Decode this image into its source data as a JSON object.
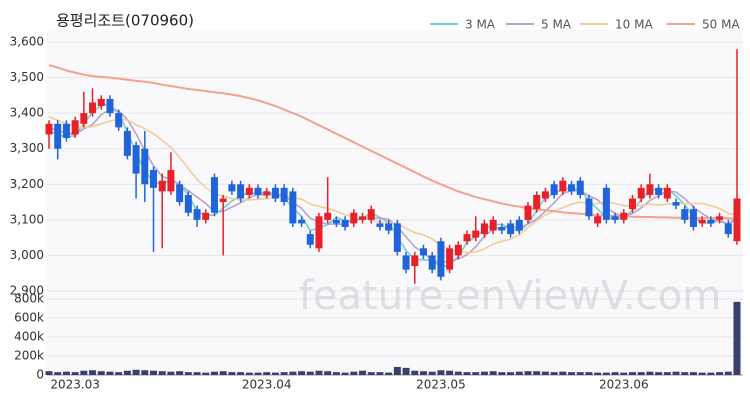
{
  "chart_data": {
    "type": "candlestick",
    "title": "용평리조트(070960)",
    "watermark": "feature.enViewV.com",
    "categories": [
      null,
      null,
      null,
      "2023.03",
      null,
      null,
      null,
      null,
      null,
      null,
      null,
      null,
      null,
      null,
      null,
      null,
      null,
      null,
      null,
      null,
      null,
      null,
      null,
      null,
      null,
      "2023.04",
      null,
      null,
      null,
      null,
      null,
      null,
      null,
      null,
      null,
      null,
      null,
      null,
      null,
      null,
      null,
      null,
      null,
      null,
      null,
      "2023.05",
      null,
      null,
      null,
      null,
      null,
      null,
      null,
      null,
      null,
      null,
      null,
      null,
      null,
      null,
      null,
      null,
      null,
      null,
      null,
      null,
      "2023.06",
      null,
      null,
      null,
      null,
      null,
      null,
      null,
      null,
      null,
      null,
      null,
      null,
      null
    ],
    "open": [
      3340,
      3370,
      3370,
      3340,
      3370,
      3400,
      3420,
      3440,
      3400,
      3350,
      3310,
      3300,
      3240,
      3180,
      3180,
      3200,
      3170,
      3130,
      3100,
      3220,
      3150,
      3200,
      3200,
      3170,
      3190,
      3170,
      3190,
      3190,
      3180,
      3100,
      3060,
      3020,
      3100,
      3100,
      3100,
      3090,
      3100,
      3100,
      3090,
      3090,
      3090,
      3000,
      2970,
      3020,
      3000,
      3040,
      2960,
      3000,
      3040,
      3050,
      3060,
      3070,
      3080,
      3090,
      3100,
      3100,
      3130,
      3160,
      3200,
      3180,
      3200,
      3210,
      3160,
      3090,
      3190,
      3110,
      3100,
      3130,
      3160,
      3170,
      3190,
      3160,
      3150,
      3130,
      3130,
      3090,
      3100,
      3100,
      3090,
      3040
    ],
    "high": [
      3380,
      3380,
      3380,
      3390,
      3460,
      3470,
      3450,
      3450,
      3410,
      3360,
      3320,
      3350,
      3250,
      3230,
      3290,
      3210,
      3180,
      3140,
      3130,
      3230,
      3170,
      3210,
      3210,
      3200,
      3200,
      3190,
      3200,
      3200,
      3190,
      3110,
      3070,
      3120,
      3220,
      3110,
      3110,
      3130,
      3120,
      3140,
      3100,
      3100,
      3100,
      3010,
      3010,
      3030,
      3010,
      3050,
      3030,
      3040,
      3070,
      3110,
      3100,
      3110,
      3090,
      3100,
      3110,
      3150,
      3180,
      3190,
      3210,
      3220,
      3210,
      3220,
      3170,
      3120,
      3200,
      3120,
      3130,
      3170,
      3200,
      3230,
      3200,
      3200,
      3160,
      3140,
      3140,
      3110,
      3110,
      3120,
      3100,
      3580
    ],
    "low": [
      3300,
      3270,
      3320,
      3330,
      3360,
      3390,
      3410,
      3390,
      3350,
      3270,
      3160,
      3150,
      3010,
      3020,
      3170,
      3140,
      3110,
      3080,
      3090,
      3110,
      3000,
      3170,
      3150,
      3160,
      3160,
      3160,
      3150,
      3140,
      3080,
      3080,
      3020,
      3010,
      3090,
      3080,
      3070,
      3080,
      3090,
      3090,
      3070,
      3060,
      3000,
      2950,
      2920,
      2990,
      2950,
      2930,
      2950,
      2990,
      3030,
      3040,
      3050,
      3060,
      3060,
      3050,
      3060,
      3090,
      3120,
      3150,
      3160,
      3170,
      3170,
      3160,
      3100,
      3080,
      3090,
      3090,
      3090,
      3120,
      3150,
      3160,
      3160,
      3150,
      3130,
      3090,
      3070,
      3080,
      3080,
      3090,
      3050,
      3030
    ],
    "close": [
      3370,
      3300,
      3330,
      3380,
      3400,
      3430,
      3440,
      3400,
      3360,
      3280,
      3230,
      3200,
      3190,
      3210,
      3240,
      3150,
      3120,
      3100,
      3120,
      3120,
      3160,
      3180,
      3160,
      3190,
      3170,
      3180,
      3160,
      3150,
      3090,
      3090,
      3030,
      3110,
      3120,
      3090,
      3080,
      3120,
      3110,
      3130,
      3080,
      3070,
      3010,
      2960,
      3000,
      3000,
      2960,
      2940,
      3020,
      3030,
      3060,
      3070,
      3090,
      3100,
      3070,
      3060,
      3070,
      3140,
      3170,
      3180,
      3170,
      3210,
      3180,
      3170,
      3110,
      3110,
      3100,
      3100,
      3120,
      3160,
      3190,
      3200,
      3170,
      3190,
      3140,
      3100,
      3080,
      3100,
      3090,
      3110,
      3060,
      3160
    ],
    "up_color": "#e8202a",
    "down_color": "#1f64d8",
    "series": [
      {
        "name": "3 MA",
        "color": "#6fd0d6",
        "values": [
          3350,
          3340,
          3333,
          3337,
          3370,
          3403,
          3423,
          3423,
          3400,
          3347,
          3290,
          3237,
          3207,
          3200,
          3213,
          3200,
          3170,
          3123,
          3113,
          3113,
          3133,
          3153,
          3167,
          3177,
          3173,
          3180,
          3170,
          3163,
          3133,
          3110,
          3070,
          3077,
          3087,
          3107,
          3097,
          3097,
          3103,
          3120,
          3107,
          3093,
          3053,
          3013,
          2990,
          2987,
          2987,
          2967,
          2973,
          2997,
          3037,
          3053,
          3073,
          3087,
          3087,
          3077,
          3067,
          3090,
          3127,
          3163,
          3173,
          3187,
          3187,
          3187,
          3153,
          3130,
          3107,
          3103,
          3107,
          3127,
          3157,
          3183,
          3187,
          3187,
          3167,
          3143,
          3107,
          3093,
          3090,
          3100,
          3087,
          3110
        ]
      },
      {
        "name": "5 MA",
        "color": "#b7a3d3",
        "values": [
          3360,
          3350,
          3345,
          3340,
          3356,
          3368,
          3396,
          3410,
          3406,
          3382,
          3342,
          3294,
          3252,
          3222,
          3214,
          3198,
          3182,
          3164,
          3146,
          3122,
          3124,
          3136,
          3148,
          3162,
          3172,
          3168,
          3172,
          3170,
          3150,
          3132,
          3104,
          3094,
          3088,
          3088,
          3086,
          3104,
          3104,
          3106,
          3104,
          3102,
          3080,
          3052,
          3024,
          3008,
          2986,
          2980,
          2984,
          2990,
          3002,
          3024,
          3054,
          3074,
          3078,
          3080,
          3078,
          3088,
          3102,
          3124,
          3148,
          3174,
          3182,
          3182,
          3168,
          3156,
          3134,
          3118,
          3108,
          3118,
          3134,
          3154,
          3168,
          3182,
          3178,
          3160,
          3136,
          3118,
          3102,
          3096,
          3088,
          3104
        ]
      },
      {
        "name": "10 MA",
        "color": "#f3cb96",
        "values": [
          3390,
          3380,
          3370,
          3362,
          3360,
          3362,
          3370,
          3378,
          3383,
          3381,
          3367,
          3356,
          3342,
          3324,
          3304,
          3276,
          3244,
          3214,
          3190,
          3174,
          3166,
          3160,
          3156,
          3156,
          3158,
          3160,
          3162,
          3166,
          3162,
          3158,
          3144,
          3138,
          3132,
          3124,
          3114,
          3108,
          3102,
          3100,
          3094,
          3092,
          3090,
          3076,
          3064,
          3058,
          3046,
          3028,
          3018,
          3010,
          3008,
          3010,
          3018,
          3032,
          3040,
          3046,
          3058,
          3078,
          3098,
          3114,
          3124,
          3134,
          3144,
          3150,
          3146,
          3146,
          3150,
          3146,
          3140,
          3138,
          3140,
          3144,
          3142,
          3144,
          3148,
          3146,
          3146,
          3146,
          3140,
          3132,
          3118,
          3114
        ]
      },
      {
        "name": "50 MA",
        "color": "#f4a28e",
        "values": [
          3535,
          3528,
          3520,
          3514,
          3508,
          3504,
          3502,
          3500,
          3497,
          3494,
          3491,
          3488,
          3485,
          3480,
          3476,
          3472,
          3468,
          3465,
          3462,
          3459,
          3456,
          3452,
          3448,
          3442,
          3436,
          3428,
          3420,
          3410,
          3400,
          3390,
          3378,
          3366,
          3354,
          3342,
          3330,
          3318,
          3306,
          3294,
          3282,
          3270,
          3258,
          3246,
          3234,
          3222,
          3210,
          3200,
          3190,
          3180,
          3172,
          3164,
          3158,
          3152,
          3146,
          3141,
          3137,
          3133,
          3130,
          3127,
          3124,
          3121,
          3119,
          3117,
          3115,
          3113,
          3112,
          3111,
          3110,
          3109,
          3108,
          3108,
          3107,
          3107,
          3106,
          3106,
          3106,
          3105,
          3105,
          3105,
          3104,
          3104
        ]
      }
    ],
    "ylim": [
      2900,
      3600
    ],
    "yticks": [
      {
        "value": 2900,
        "label": "2,900"
      },
      {
        "value": 3000,
        "label": "3,000"
      },
      {
        "value": 3100,
        "label": "3,100"
      },
      {
        "value": 3200,
        "label": "3,200"
      },
      {
        "value": 3300,
        "label": "3,300"
      },
      {
        "value": 3400,
        "label": "3,400"
      },
      {
        "value": 3500,
        "label": "3,500"
      },
      {
        "value": 3600,
        "label": "3,600"
      }
    ],
    "grid": true,
    "volume": {
      "color": "#3a3f6b",
      "values": [
        40000,
        30000,
        35000,
        30000,
        45000,
        50000,
        40000,
        35000,
        30000,
        45000,
        55000,
        50000,
        45000,
        40000,
        35000,
        40000,
        30000,
        30000,
        25000,
        35000,
        40000,
        30000,
        30000,
        25000,
        25000,
        30000,
        25000,
        30000,
        35000,
        40000,
        35000,
        45000,
        40000,
        30000,
        25000,
        35000,
        45000,
        30000,
        30000,
        25000,
        85000,
        75000,
        45000,
        40000,
        35000,
        50000,
        45000,
        35000,
        30000,
        30000,
        35000,
        40000,
        30000,
        30000,
        35000,
        40000,
        40000,
        35000,
        30000,
        35000,
        30000,
        30000,
        30000,
        25000,
        25000,
        30000,
        25000,
        30000,
        30000,
        35000,
        30000,
        30000,
        35000,
        30000,
        30000,
        25000,
        25000,
        30000,
        35000,
        770000
      ],
      "ylim": [
        0,
        800000
      ],
      "yticks": [
        0,
        {
          "value": 200000,
          "label": "200k"
        },
        {
          "value": 400000,
          "label": "400k"
        },
        {
          "value": 600000,
          "label": "600k"
        },
        {
          "value": 800000,
          "label": "800k"
        }
      ]
    }
  }
}
